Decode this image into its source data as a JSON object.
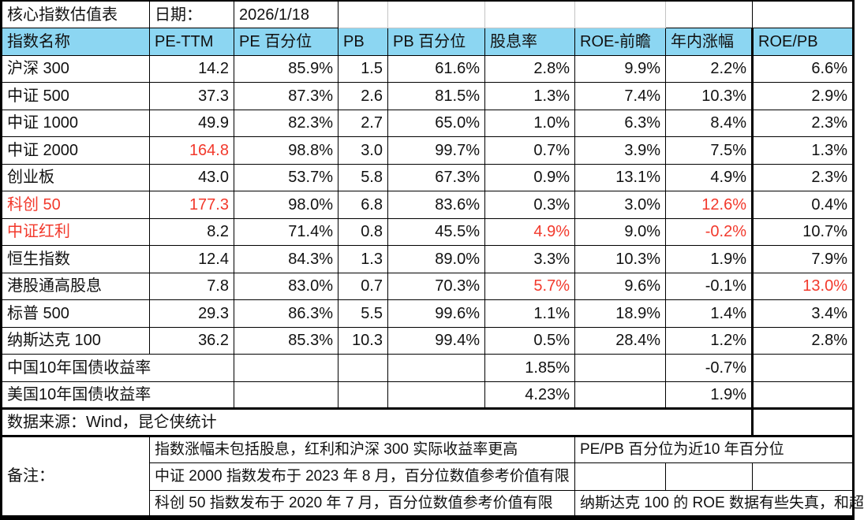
{
  "header": {
    "title": "核心指数估值表",
    "date_label": "日期：",
    "date_value": "2026/1/18"
  },
  "colors": {
    "header_bg": "#8cd6f2",
    "red_accent": "#f2392c",
    "border": "#000000",
    "text": "#111111"
  },
  "table": {
    "columns": [
      "指数名称",
      "PE-TTM",
      "PE 百分位",
      "PB",
      "PB 百分位",
      "股息率",
      "ROE-前瞻",
      "年内涨幅",
      "ROE/PB"
    ],
    "column_keys": [
      "pe_ttm",
      "pe_pct",
      "pb",
      "pb_pct",
      "dividend_yield",
      "roe_forward",
      "ytd_change",
      "roe_pb"
    ],
    "rows": [
      {
        "name": "沪深 300",
        "name_red": false,
        "values": [
          "14.2",
          "85.9%",
          "1.5",
          "61.6%",
          "2.8%",
          "9.9%",
          "2.2%",
          "6.6%"
        ],
        "red": []
      },
      {
        "name": "中证 500",
        "name_red": false,
        "values": [
          "37.3",
          "87.3%",
          "2.6",
          "81.5%",
          "1.3%",
          "7.4%",
          "10.3%",
          "2.9%"
        ],
        "red": []
      },
      {
        "name": "中证 1000",
        "name_red": false,
        "values": [
          "49.9",
          "82.3%",
          "2.7",
          "65.0%",
          "1.0%",
          "6.3%",
          "8.4%",
          "2.3%"
        ],
        "red": []
      },
      {
        "name": "中证 2000",
        "name_red": false,
        "values": [
          "164.8",
          "98.8%",
          "3.0",
          "99.7%",
          "0.7%",
          "3.9%",
          "7.5%",
          "1.3%"
        ],
        "red": [
          0
        ]
      },
      {
        "name": "创业板",
        "name_red": false,
        "values": [
          "43.0",
          "53.7%",
          "5.8",
          "67.3%",
          "0.9%",
          "13.1%",
          "4.9%",
          "2.3%"
        ],
        "red": []
      },
      {
        "name": "科创 50",
        "name_red": true,
        "values": [
          "177.3",
          "98.0%",
          "6.8",
          "83.6%",
          "0.3%",
          "3.0%",
          "12.6%",
          "0.4%"
        ],
        "red": [
          0,
          6
        ]
      },
      {
        "name": "中证红利",
        "name_red": true,
        "values": [
          "8.2",
          "71.4%",
          "0.8",
          "45.5%",
          "4.9%",
          "9.0%",
          "-0.2%",
          "10.7%"
        ],
        "red": [
          4,
          6
        ]
      },
      {
        "name": "恒生指数",
        "name_red": false,
        "values": [
          "12.4",
          "84.3%",
          "1.3",
          "89.0%",
          "3.3%",
          "10.3%",
          "1.9%",
          "7.9%"
        ],
        "red": []
      },
      {
        "name": "港股通高股息",
        "name_red": false,
        "values": [
          "7.8",
          "83.0%",
          "0.7",
          "70.3%",
          "5.7%",
          "9.6%",
          "-0.1%",
          "13.0%"
        ],
        "red": [
          4,
          7
        ]
      },
      {
        "name": "标普 500",
        "name_red": false,
        "values": [
          "29.3",
          "86.3%",
          "5.5",
          "99.6%",
          "1.1%",
          "18.9%",
          "1.4%",
          "3.4%"
        ],
        "red": []
      },
      {
        "name": "纳斯达克 100",
        "name_red": false,
        "values": [
          "36.2",
          "85.3%",
          "10.3",
          "99.4%",
          "0.5%",
          "28.4%",
          "1.2%",
          "2.8%"
        ],
        "red": []
      }
    ]
  },
  "bonds": [
    {
      "name": "中国10年国债收益率",
      "dividend_yield": "1.85%",
      "ytd_change": "-0.7%"
    },
    {
      "name": "美国10年国债收益率",
      "dividend_yield": "4.23%",
      "ytd_change": "1.9%"
    }
  ],
  "source": {
    "text": "数据来源：Wind，昆仑侠统计"
  },
  "notes": {
    "label": "备注：",
    "rows": [
      {
        "note": "指数涨幅未包括股息，红利和沪深 300 实际收益率更高",
        "side": "PE/PB 百分位为近10 年百分位"
      },
      {
        "note": "中证 2000 指数发布于 2023 年 8 月，百分位数值参考价值有限",
        "side": ""
      },
      {
        "note": "科创 50 指数发布于 2020 年 7 月，百分位数值参考价值有限",
        "side": "纳斯达克 100 的 ROE 数据有些失真，和超"
      }
    ]
  },
  "chart_data": {
    "type": "table",
    "title": "核心指数估值表",
    "date": "2026/1/18",
    "columns": [
      "指数名称",
      "PE-TTM",
      "PE 百分位",
      "PB",
      "PB 百分位",
      "股息率",
      "ROE-前瞻",
      "年内涨幅",
      "ROE/PB"
    ],
    "rows": [
      [
        "沪深 300",
        "14.2",
        "85.9%",
        "1.5",
        "61.6%",
        "2.8%",
        "9.9%",
        "2.2%",
        "6.6%"
      ],
      [
        "中证 500",
        "37.3",
        "87.3%",
        "2.6",
        "81.5%",
        "1.3%",
        "7.4%",
        "10.3%",
        "2.9%"
      ],
      [
        "中证 1000",
        "49.9",
        "82.3%",
        "2.7",
        "65.0%",
        "1.0%",
        "6.3%",
        "8.4%",
        "2.3%"
      ],
      [
        "中证 2000",
        "164.8",
        "98.8%",
        "3.0",
        "99.7%",
        "0.7%",
        "3.9%",
        "7.5%",
        "1.3%"
      ],
      [
        "创业板",
        "43.0",
        "53.7%",
        "5.8",
        "67.3%",
        "0.9%",
        "13.1%",
        "4.9%",
        "2.3%"
      ],
      [
        "科创 50",
        "177.3",
        "98.0%",
        "6.8",
        "83.6%",
        "0.3%",
        "3.0%",
        "12.6%",
        "0.4%"
      ],
      [
        "中证红利",
        "8.2",
        "71.4%",
        "0.8",
        "45.5%",
        "4.9%",
        "9.0%",
        "-0.2%",
        "10.7%"
      ],
      [
        "恒生指数",
        "12.4",
        "84.3%",
        "1.3",
        "89.0%",
        "3.3%",
        "10.3%",
        "1.9%",
        "7.9%"
      ],
      [
        "港股通高股息",
        "7.8",
        "83.0%",
        "0.7",
        "70.3%",
        "5.7%",
        "9.6%",
        "-0.1%",
        "13.0%"
      ],
      [
        "标普 500",
        "29.3",
        "86.3%",
        "5.5",
        "99.6%",
        "1.1%",
        "18.9%",
        "1.4%",
        "3.4%"
      ],
      [
        "纳斯达克 100",
        "36.2",
        "85.3%",
        "10.3",
        "99.4%",
        "0.5%",
        "28.4%",
        "1.2%",
        "2.8%"
      ],
      [
        "中国10年国债收益率",
        "",
        "",
        "",
        "",
        "1.85%",
        "",
        "-0.7%",
        ""
      ],
      [
        "美国10年国债收益率",
        "",
        "",
        "",
        "",
        "4.23%",
        "",
        "1.9%",
        ""
      ]
    ],
    "red_highlighted_cells": [
      [
        "中证 2000",
        "PE-TTM"
      ],
      [
        "科创 50",
        "指数名称"
      ],
      [
        "科创 50",
        "PE-TTM"
      ],
      [
        "科创 50",
        "年内涨幅"
      ],
      [
        "中证红利",
        "指数名称"
      ],
      [
        "中证红利",
        "股息率"
      ],
      [
        "中证红利",
        "年内涨幅"
      ],
      [
        "港股通高股息",
        "股息率"
      ],
      [
        "港股通高股息",
        "ROE/PB"
      ]
    ],
    "footer_source": "数据来源：Wind，昆仑侠统计",
    "footer_notes": [
      "指数涨幅未包括股息，红利和沪深 300 实际收益率更高",
      "PE/PB 百分位为近10 年百分位",
      "中证 2000 指数发布于 2023 年 8 月，百分位数值参考价值有限",
      "科创 50 指数发布于 2020 年 7 月，百分位数值参考价值有限",
      "纳斯达克 100 的 ROE 数据有些失真，和超"
    ]
  }
}
